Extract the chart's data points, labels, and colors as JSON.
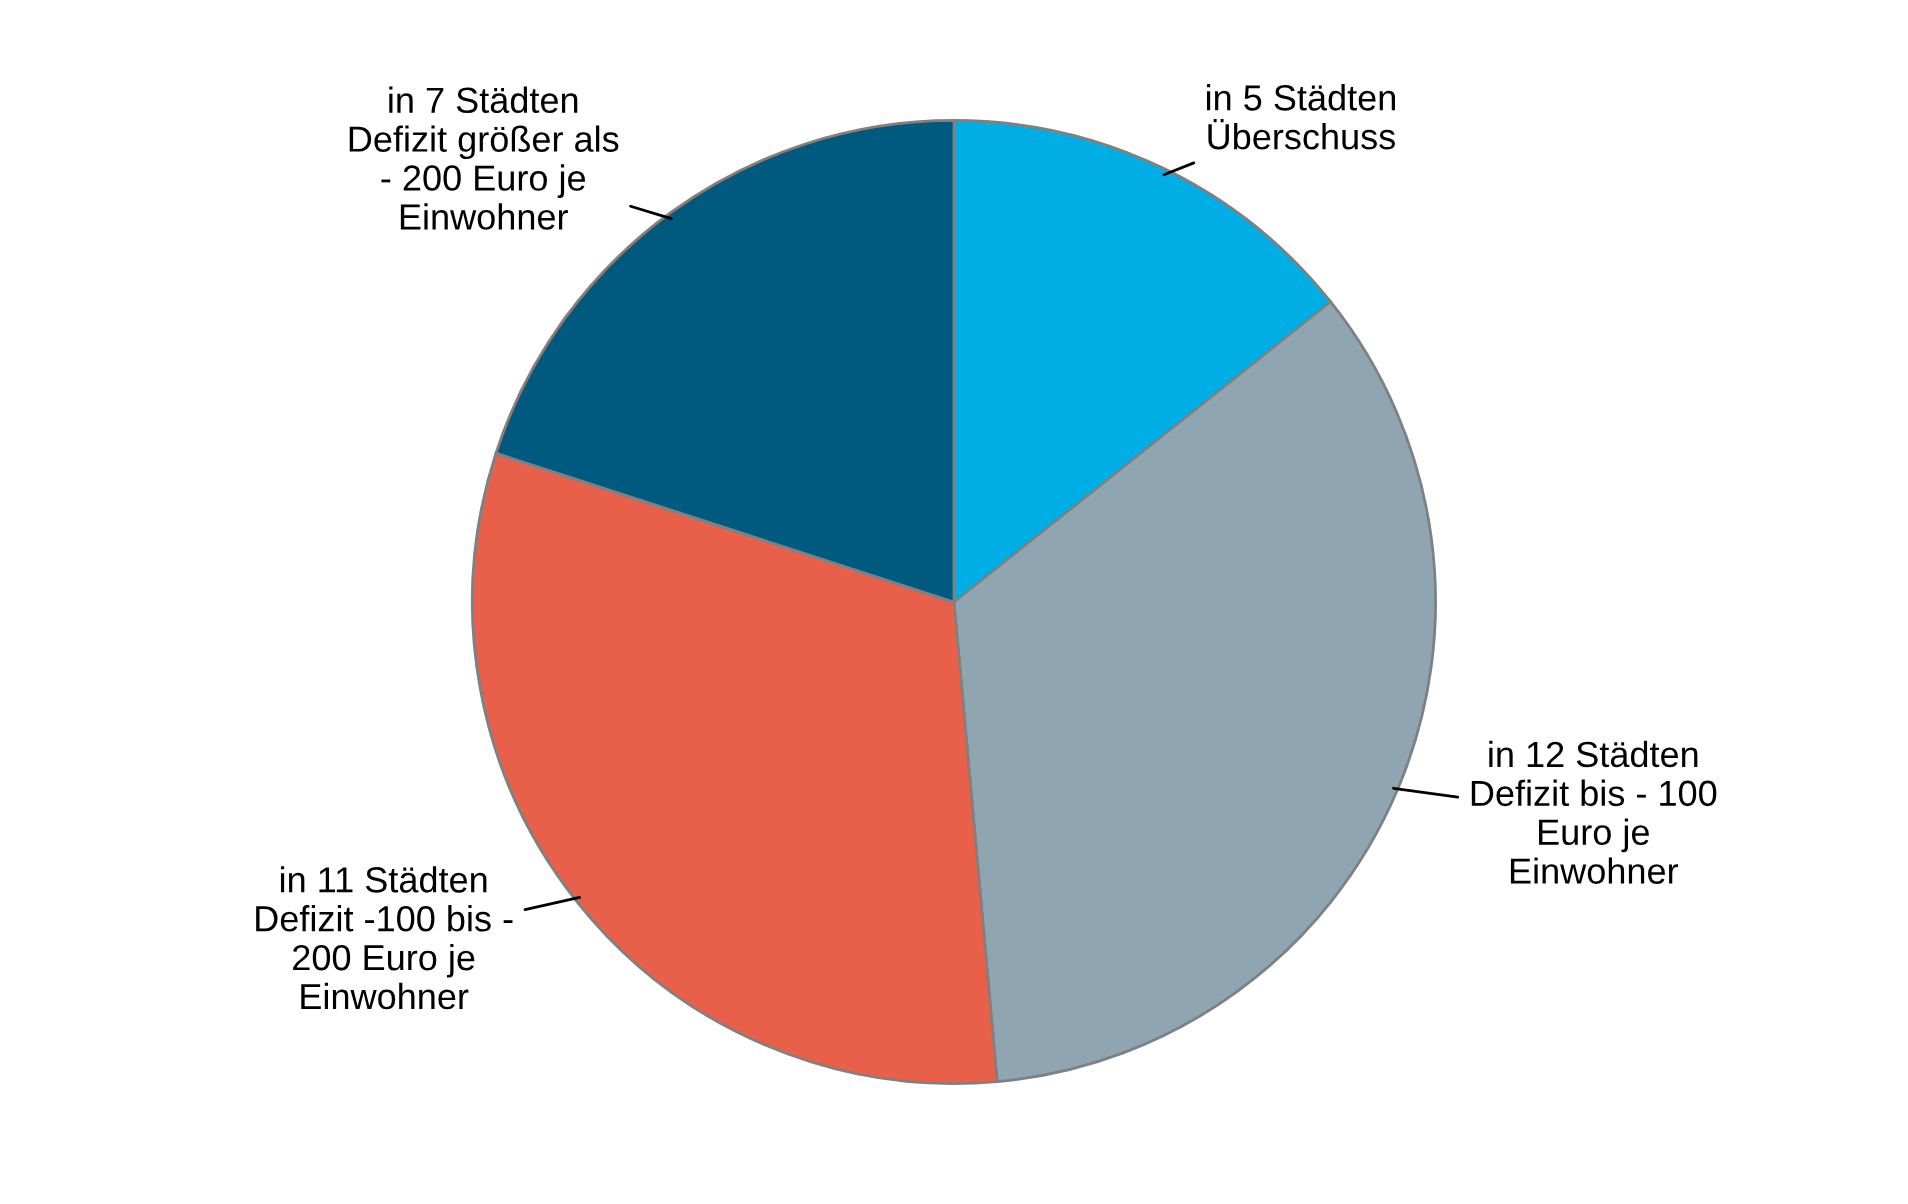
{
  "chart_data": {
    "type": "pie",
    "categories": [
      "in 5 Städten\nÜberschuss",
      "in 12 Städten\nDefizit bis - 100\nEuro je\nEinwohner",
      "in 11 Städten\nDefizit -100 bis -\n200 Euro je\nEinwohner",
      "in 7 Städten\nDefizit größer als\n- 200 Euro je\nEinwohner"
    ],
    "values": [
      5,
      12,
      11,
      7
    ],
    "colors": [
      "#00aee6",
      "#8fa5b1",
      "#e8604a",
      "#005a80"
    ]
  }
}
